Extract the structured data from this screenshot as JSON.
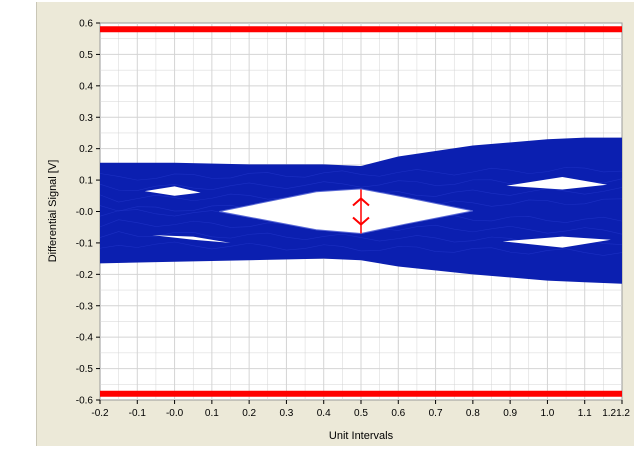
{
  "chart_data": {
    "type": "line",
    "title": "",
    "xlabel": "Unit Intervals",
    "ylabel": "Differential Signal  [V]",
    "xlim": [
      -0.2,
      1.2
    ],
    "ylim": [
      -0.6,
      0.6
    ],
    "grid": true,
    "x_ticks": [
      {
        "v": -0.2,
        "label": "-0.2"
      },
      {
        "v": -0.1,
        "label": "-0.1"
      },
      {
        "v": 0.0,
        "label": "-0.0"
      },
      {
        "v": 0.1,
        "label": "0.1"
      },
      {
        "v": 0.2,
        "label": "0.2"
      },
      {
        "v": 0.3,
        "label": "0.3"
      },
      {
        "v": 0.4,
        "label": "0.4"
      },
      {
        "v": 0.5,
        "label": "0.5"
      },
      {
        "v": 0.6,
        "label": "0.6"
      },
      {
        "v": 0.7,
        "label": "0.7"
      },
      {
        "v": 0.8,
        "label": "0.8"
      },
      {
        "v": 0.9,
        "label": "0.9"
      },
      {
        "v": 1.0,
        "label": "1.0"
      },
      {
        "v": 1.1,
        "label": "1.1"
      },
      {
        "v": 1.2,
        "label": "1.21.2"
      }
    ],
    "y_ticks": [
      {
        "v": 0.6,
        "label": "0.6"
      },
      {
        "v": 0.5,
        "label": "0.5"
      },
      {
        "v": 0.4,
        "label": "0.4"
      },
      {
        "v": 0.3,
        "label": "0.3"
      },
      {
        "v": 0.2,
        "label": "0.2"
      },
      {
        "v": 0.1,
        "label": "0.1"
      },
      {
        "v": 0.0,
        "label": "-0.0"
      },
      {
        "v": -0.1,
        "label": "-0.1"
      },
      {
        "v": -0.2,
        "label": "-0.2"
      },
      {
        "v": -0.3,
        "label": "-0.3"
      },
      {
        "v": -0.4,
        "label": "-0.4"
      },
      {
        "v": -0.5,
        "label": "-0.5"
      },
      {
        "v": -0.6,
        "label": "-0.6"
      }
    ],
    "limit_lines": [
      0.58,
      -0.58
    ],
    "eye": {
      "outer_top": [
        [
          -0.2,
          0.155
        ],
        [
          0.0,
          0.155
        ],
        [
          0.2,
          0.15
        ],
        [
          0.4,
          0.15
        ],
        [
          0.5,
          0.145
        ],
        [
          0.6,
          0.175
        ],
        [
          0.8,
          0.21
        ],
        [
          1.0,
          0.23
        ],
        [
          1.1,
          0.235
        ],
        [
          1.2,
          0.235
        ]
      ],
      "outer_bottom": [
        [
          -0.2,
          -0.165
        ],
        [
          0.0,
          -0.16
        ],
        [
          0.2,
          -0.155
        ],
        [
          0.4,
          -0.15
        ],
        [
          0.5,
          -0.155
        ],
        [
          0.6,
          -0.175
        ],
        [
          0.8,
          -0.2
        ],
        [
          1.0,
          -0.22
        ],
        [
          1.1,
          -0.225
        ],
        [
          1.2,
          -0.23
        ]
      ],
      "center_opening": [
        [
          0.12,
          0.0
        ],
        [
          0.38,
          0.063
        ],
        [
          0.5,
          0.072
        ],
        [
          0.62,
          0.045
        ],
        [
          0.8,
          0.002
        ],
        [
          0.62,
          -0.04
        ],
        [
          0.5,
          -0.07
        ],
        [
          0.38,
          -0.058
        ]
      ],
      "small_openings": [
        [
          [
            -0.08,
            0.065
          ],
          [
            0.0,
            0.08
          ],
          [
            0.07,
            0.06
          ],
          [
            0.0,
            0.05
          ]
        ],
        [
          [
            -0.06,
            -0.075
          ],
          [
            0.05,
            -0.09
          ],
          [
            0.15,
            -0.1
          ],
          [
            0.05,
            -0.08
          ]
        ],
        [
          [
            0.89,
            0.082
          ],
          [
            1.04,
            0.11
          ],
          [
            1.16,
            0.085
          ],
          [
            1.04,
            0.07
          ]
        ],
        [
          [
            0.88,
            -0.095
          ],
          [
            1.04,
            -0.115
          ],
          [
            1.17,
            -0.09
          ],
          [
            1.04,
            -0.08
          ]
        ]
      ]
    },
    "eye_height_marker": {
      "x": 0.5,
      "y_top": 0.07,
      "y_bottom": -0.07
    },
    "colors": {
      "signal": "#0b1fb0",
      "limit": "#ff0000",
      "marker": "#ff0000",
      "grid": "#d4d4d4",
      "panel": "#ece9d8"
    }
  }
}
